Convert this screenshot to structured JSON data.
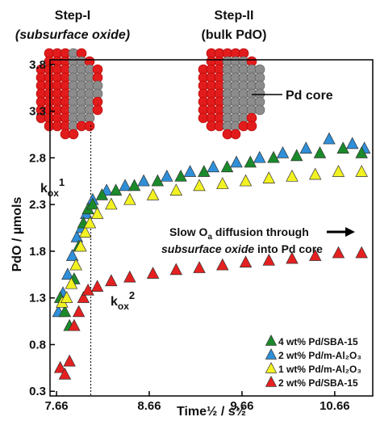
{
  "chart_data": {
    "type": "scatter",
    "x_label": "Time½ / s½",
    "y_label": "PdO / µmols",
    "xlim": [
      7.59,
      11.07
    ],
    "ylim": [
      0.25,
      3.85
    ],
    "xticks": [
      7.66,
      8.66,
      9.66,
      10.66
    ],
    "yticks": [
      0.3,
      0.8,
      1.3,
      1.8,
      2.3,
      2.8,
      3.3,
      3.8
    ],
    "grid": false,
    "legend": "lower right",
    "reference_line_x": 8.03,
    "annotations": {
      "step1_title": "Step-I",
      "step1_sub": "(subsurface oxide)",
      "step2_title": "Step-II",
      "step2_sub": "(bulk PdO)",
      "core": "Pd core",
      "k1": [
        "k",
        "ox",
        "1"
      ],
      "k2": [
        "k",
        "ox",
        "2"
      ],
      "slow_line1": [
        "Slow O",
        "a",
        " diffusion through"
      ],
      "slow_line2": [
        "subsurface oxide",
        " into Pd core"
      ]
    },
    "series": [
      {
        "name": "2 wt% Pd/m-Al₂O₃",
        "color": "#2f8fd8",
        "x": [
          7.68,
          7.73,
          7.78,
          7.83,
          7.88,
          7.93,
          7.98,
          8.05,
          8.2,
          8.4,
          8.6,
          8.85,
          9.1,
          9.35,
          9.6,
          9.85,
          10.1,
          10.35,
          10.6,
          10.85,
          10.98
        ],
        "values": [
          1.15,
          1.35,
          1.55,
          1.75,
          1.95,
          2.05,
          2.2,
          2.35,
          2.45,
          2.5,
          2.55,
          2.6,
          2.65,
          2.7,
          2.75,
          2.8,
          2.85,
          2.9,
          3.0,
          2.95,
          2.9
        ]
      },
      {
        "name": "4 wt% Pd/SBA-15",
        "color": "#1a8a2a",
        "x": [
          7.7,
          7.75,
          7.8,
          7.85,
          7.9,
          7.95,
          8.0,
          8.05,
          8.15,
          8.3,
          8.5,
          8.75,
          9.0,
          9.25,
          9.5,
          9.75,
          10.0,
          10.25,
          10.5,
          10.75,
          10.95
        ],
        "values": [
          1.3,
          1.15,
          1.0,
          1.5,
          1.85,
          2.1,
          2.25,
          2.3,
          2.4,
          2.45,
          2.5,
          2.55,
          2.6,
          2.65,
          2.7,
          2.75,
          2.8,
          2.82,
          2.85,
          2.9,
          2.85
        ]
      },
      {
        "name": "1 wt% Pd/m-Al₂O₃",
        "color": "#f2f222",
        "x": [
          7.72,
          7.77,
          7.82,
          7.87,
          7.92,
          7.97,
          8.02,
          8.1,
          8.25,
          8.45,
          8.7,
          8.95,
          9.2,
          9.45,
          9.7,
          9.95,
          10.2,
          10.45,
          10.7,
          10.95
        ],
        "values": [
          1.25,
          1.3,
          1.45,
          1.65,
          1.85,
          2.0,
          2.1,
          2.2,
          2.3,
          2.35,
          2.4,
          2.45,
          2.5,
          2.52,
          2.55,
          2.58,
          2.6,
          2.62,
          2.65,
          2.65
        ]
      },
      {
        "name": "2 wt% Pd/SBA-15",
        "color": "#e52020",
        "x": [
          7.7,
          7.75,
          7.8,
          7.85,
          7.9,
          7.95,
          8.0,
          8.1,
          8.25,
          8.45,
          8.7,
          8.95,
          9.2,
          9.45,
          9.7,
          9.95,
          10.2,
          10.45,
          10.7,
          10.95
        ],
        "values": [
          0.55,
          0.48,
          0.62,
          1.0,
          1.15,
          1.3,
          1.38,
          1.42,
          1.48,
          1.52,
          1.56,
          1.6,
          1.62,
          1.65,
          1.68,
          1.7,
          1.72,
          1.75,
          1.78,
          1.78
        ]
      }
    ]
  }
}
